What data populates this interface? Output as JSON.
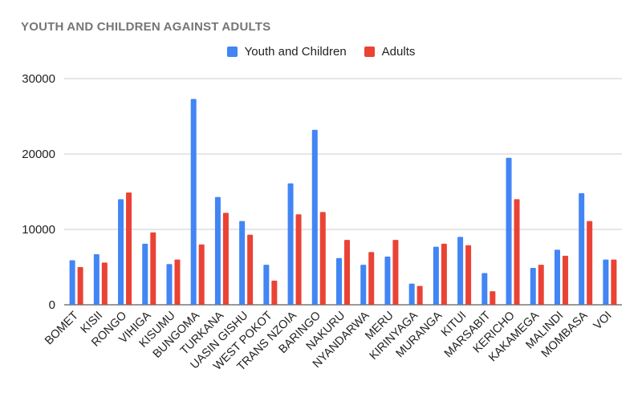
{
  "chart_data": {
    "type": "bar",
    "title": "YOUTH AND CHILDREN AGAINST ADULTS",
    "xlabel": "",
    "ylabel": "",
    "ylim": [
      0,
      30000
    ],
    "yticks": [
      0,
      10000,
      20000,
      30000
    ],
    "grid": true,
    "legend_position": "top",
    "categories": [
      "BOMET",
      "KISII",
      "RONGO",
      "VIHIGA",
      "KISUMU",
      "BUNGOMA",
      "TURKANA",
      "UASIN GISHU",
      "WEST POKOT",
      "TRANS NZOIA",
      "BARINGO",
      "NAKURU",
      "NYANDARWA",
      "MERU",
      "KIRINYAGA",
      "MURANGA",
      "KITUI",
      "MARSABIT",
      "KERICHO",
      "KAKAMEGA",
      "MALINDI",
      "MOMBASA",
      "VOI"
    ],
    "series": [
      {
        "name": "Youth and Children",
        "color": "#4285f4",
        "values": [
          5900,
          6700,
          14000,
          8100,
          5400,
          27300,
          14300,
          11100,
          5300,
          16100,
          23200,
          6200,
          5300,
          6400,
          2800,
          7700,
          9000,
          4200,
          19500,
          4900,
          7300,
          14800,
          6000
        ]
      },
      {
        "name": "Adults",
        "color": "#ea4335",
        "values": [
          5000,
          5600,
          14900,
          9600,
          6000,
          8000,
          12200,
          9300,
          3200,
          12000,
          12300,
          8600,
          7000,
          8600,
          2500,
          8100,
          7900,
          1800,
          14000,
          5300,
          6500,
          11100,
          6000
        ]
      }
    ]
  }
}
